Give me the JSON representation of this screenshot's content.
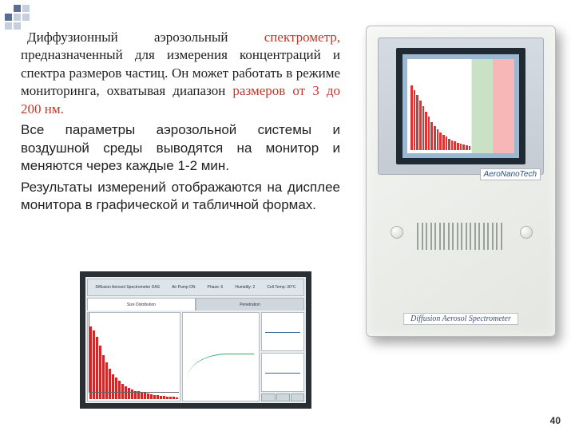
{
  "text": {
    "p1a": "Диффузионный аэрозольный ",
    "p1b": "спектрометр,",
    "p1c": " предназначенный для измерения концентраций и спектра размеров частиц. Он может работать в режиме мониторинга, охватывая диапазон ",
    "p1d": "размеров от 3 до 200 нм.",
    "p2": "Все параметры аэрозольной системы и воздушной среды выводятся на монитор и меняются через каждые 1-2 мин.",
    "p3": "Результаты измерений отображаются на дисплее монитора в графической и табличной формах."
  },
  "device": {
    "brand": "AeroNanoTech",
    "model": "Diffusion Aerosol Spectrometer",
    "mini_bar_heights_pct": [
      92,
      85,
      78,
      70,
      62,
      54,
      47,
      40,
      34,
      29,
      25,
      22,
      19,
      16,
      14,
      12,
      10,
      9,
      8,
      7,
      6
    ]
  },
  "software": {
    "title_fields": [
      "Diffusion Aerosol Spectrometer DAS",
      "Air Pump ON",
      "Phase: 6",
      "Humidity: 2",
      "Cell Temp: 30°C"
    ],
    "tabs": [
      "Size Distribution",
      "Penetration"
    ],
    "tabs_active_index": 0,
    "histogram_heights_pct": [
      95,
      90,
      82,
      70,
      58,
      48,
      40,
      33,
      28,
      24,
      20,
      17,
      15,
      13,
      11,
      10,
      9,
      8,
      7,
      6,
      5,
      5,
      4,
      4,
      3,
      3,
      3,
      2
    ],
    "colors": {
      "bar": "#cc2a2a",
      "line": "#3a6",
      "panel_line": "#369"
    },
    "side_buttons": [
      "",
      "",
      ""
    ]
  },
  "page_number": "40"
}
